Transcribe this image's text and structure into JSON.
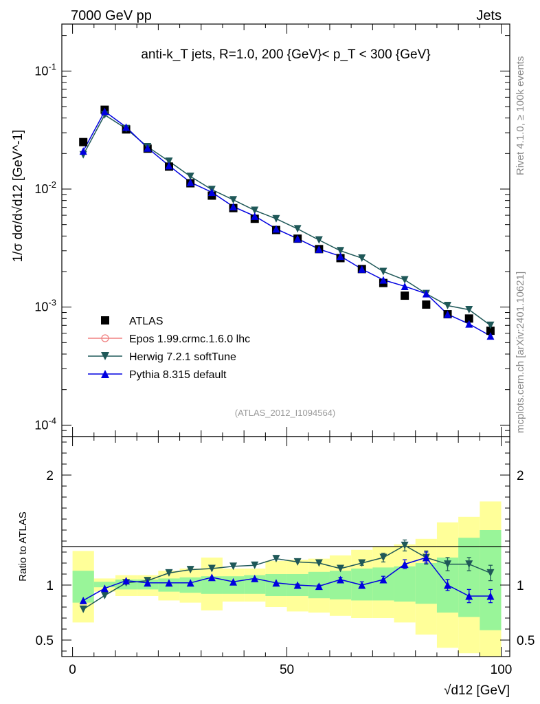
{
  "header": {
    "left": "7000 GeV pp",
    "right": "Jets"
  },
  "side_labels": {
    "rivet": "Rivet 4.1.0, ≥ 100k events",
    "mcplots": "mcplots.cern.ch [arXiv:2401.10621]"
  },
  "colors": {
    "atlas": "#000000",
    "epos": "#f08080",
    "herwig": "#1f5858",
    "pythia": "#0000e0",
    "band_inner": "#99f599",
    "band_outer": "#ffff99"
  },
  "chart_data": [
    {
      "type": "scatter",
      "panel": "main",
      "title": "anti-k_T jets, R=1.0, 200 {GeV}< p_T < 300 {GeV}",
      "ylabel": "1/σ dσ/d√d12 [GeV^-1]",
      "yscale": "log",
      "ylim": [
        8e-05,
        0.25
      ],
      "xlim": [
        -2.5,
        102
      ],
      "yticks": [
        {
          "value": 0.1,
          "label": "10^-1"
        },
        {
          "value": 0.01,
          "label": "10^-2"
        },
        {
          "value": 0.001,
          "label": "10^-3"
        },
        {
          "value": 0.0001,
          "label": "10^-4"
        }
      ],
      "watermark": "(ATLAS_2012_I1094564)",
      "x": [
        2.5,
        7.5,
        12.5,
        17.5,
        22.5,
        27.5,
        32.5,
        37.5,
        42.5,
        47.5,
        52.5,
        57.5,
        62.5,
        67.5,
        72.5,
        77.5,
        82.5,
        87.5,
        92.5,
        97.5
      ],
      "series": [
        {
          "name": "ATLAS",
          "key": "atlas",
          "marker": "square",
          "values": [
            0.025,
            0.047,
            0.032,
            0.022,
            0.0155,
            0.0112,
            0.0088,
            0.0069,
            0.0056,
            0.0045,
            0.0038,
            0.0031,
            0.0026,
            0.0021,
            0.0016,
            0.00125,
            0.00105,
            0.00087,
            0.0008,
            0.00063
          ]
        },
        {
          "name": "Epos 1.99.crmc.1.6.0 lhc",
          "key": "epos",
          "marker": "open-circle",
          "values": []
        },
        {
          "name": "Herwig 7.2.1 softTune",
          "key": "herwig",
          "marker": "triangle-down",
          "values": [
            0.0195,
            0.0425,
            0.0325,
            0.0228,
            0.0172,
            0.0128,
            0.0099,
            0.0081,
            0.0066,
            0.0056,
            0.0046,
            0.0037,
            0.003,
            0.0026,
            0.002,
            0.0017,
            0.0013,
            0.00103,
            0.00095,
            0.0007
          ]
        },
        {
          "name": "Pythia 8.315 default",
          "key": "pythia",
          "marker": "triangle-up",
          "values": [
            0.021,
            0.0455,
            0.0335,
            0.0223,
            0.0158,
            0.0114,
            0.0094,
            0.0071,
            0.0059,
            0.0046,
            0.0038,
            0.0031,
            0.0027,
            0.0021,
            0.0017,
            0.0015,
            0.0013,
            0.00087,
            0.00072,
            0.00057
          ]
        }
      ]
    },
    {
      "type": "scatter",
      "panel": "ratio",
      "ylabel": "Ratio to ATLAS",
      "xlabel": "√d12 [GeV]",
      "xlim": [
        -2.5,
        102
      ],
      "ylim": [
        0.35,
        2.35
      ],
      "xticks": [
        0,
        50,
        100
      ],
      "yticks": [
        0.5,
        1,
        2
      ],
      "bin_edges": [
        0,
        5,
        10,
        15,
        20,
        25,
        30,
        35,
        40,
        45,
        50,
        55,
        60,
        65,
        70,
        75,
        80,
        85,
        90,
        95,
        100
      ],
      "band_inner": [
        [
          0.84,
          1.13
        ],
        [
          0.98,
          1.03
        ],
        [
          0.96,
          1.05
        ],
        [
          0.96,
          1.05
        ],
        [
          0.94,
          1.06
        ],
        [
          0.93,
          1.07
        ],
        [
          0.92,
          1.08
        ],
        [
          0.92,
          1.08
        ],
        [
          0.92,
          1.09
        ],
        [
          0.9,
          1.1
        ],
        [
          0.9,
          1.1
        ],
        [
          0.88,
          1.12
        ],
        [
          0.87,
          1.13
        ],
        [
          0.86,
          1.15
        ],
        [
          0.86,
          1.16
        ],
        [
          0.85,
          1.17
        ],
        [
          0.83,
          1.2
        ],
        [
          0.75,
          1.25
        ],
        [
          0.71,
          1.43
        ],
        [
          0.59,
          1.5
        ]
      ],
      "band_outer": [
        [
          0.66,
          1.31
        ],
        [
          0.94,
          1.06
        ],
        [
          0.9,
          1.09
        ],
        [
          0.9,
          1.09
        ],
        [
          0.86,
          1.13
        ],
        [
          0.84,
          1.15
        ],
        [
          0.77,
          1.25
        ],
        [
          0.85,
          1.15
        ],
        [
          0.85,
          1.15
        ],
        [
          0.8,
          1.22
        ],
        [
          0.76,
          1.23
        ],
        [
          0.75,
          1.24
        ],
        [
          0.72,
          1.27
        ],
        [
          0.7,
          1.32
        ],
        [
          0.7,
          1.35
        ],
        [
          0.66,
          1.37
        ],
        [
          0.55,
          1.42
        ],
        [
          0.43,
          1.57
        ],
        [
          0.38,
          1.62
        ],
        [
          0.35,
          1.76
        ]
      ],
      "series": [
        {
          "name": "Herwig 7.2.1 softTune",
          "key": "herwig",
          "marker": "triangle-down",
          "values": [
            0.78,
            0.905,
            1.02,
            1.04,
            1.11,
            1.14,
            1.15,
            1.17,
            1.18,
            1.24,
            1.21,
            1.2,
            1.15,
            1.2,
            1.25,
            1.36,
            1.25,
            1.19,
            1.19,
            1.11
          ],
          "errors": [
            0,
            0,
            0,
            0,
            0,
            0,
            0,
            0,
            0,
            0,
            0,
            0,
            0,
            0.02,
            0.04,
            0.05,
            0.06,
            0.06,
            0.06,
            0.07
          ]
        },
        {
          "name": "Pythia 8.315 default",
          "key": "pythia",
          "marker": "triangle-up",
          "values": [
            0.86,
            0.97,
            1.04,
            1.02,
            1.02,
            1.02,
            1.07,
            1.03,
            1.06,
            1.02,
            1.0,
            0.99,
            1.05,
            1.0,
            1.05,
            1.19,
            1.25,
            1.0,
            0.9,
            0.9
          ],
          "errors": [
            0,
            0,
            0,
            0,
            0,
            0,
            0,
            0,
            0,
            0,
            0.01,
            0.01,
            0.02,
            0.03,
            0.03,
            0.04,
            0.05,
            0.05,
            0.06,
            0.06
          ]
        }
      ]
    }
  ]
}
